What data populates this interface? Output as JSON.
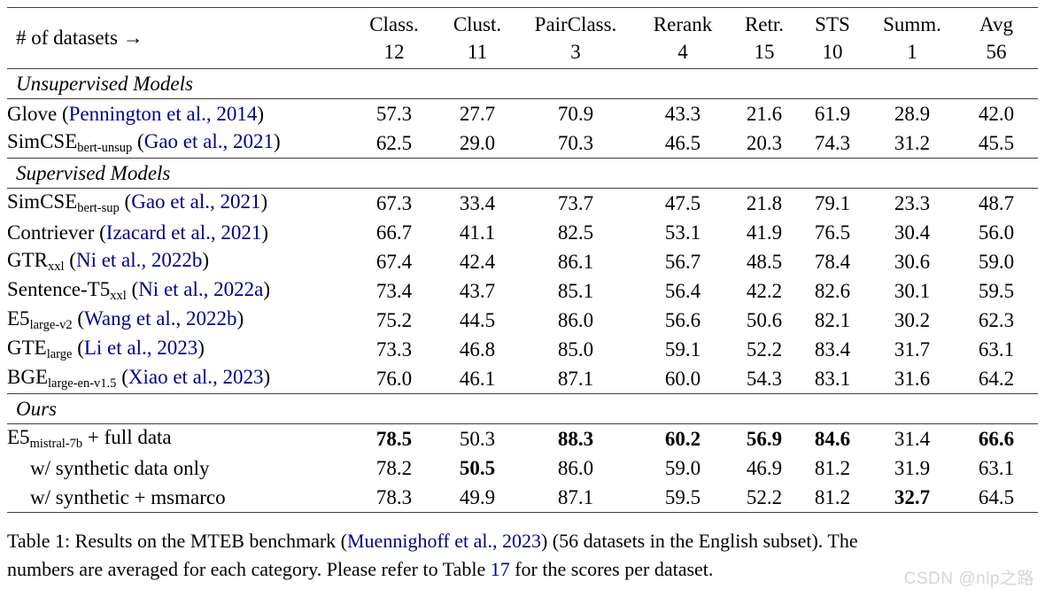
{
  "table": {
    "header": {
      "label": "# of datasets →",
      "columns": [
        {
          "label": "Class.",
          "count": "12"
        },
        {
          "label": "Clust.",
          "count": "11"
        },
        {
          "label": "PairClass.",
          "count": "3"
        },
        {
          "label": "Rerank",
          "count": "4"
        },
        {
          "label": "Retr.",
          "count": "15"
        },
        {
          "label": "STS",
          "count": "10"
        },
        {
          "label": "Summ.",
          "count": "1"
        },
        {
          "label": "Avg",
          "count": "56"
        }
      ]
    },
    "glue": {
      "open_paren": "(",
      "close_paren": ")",
      "space": " "
    },
    "sections": [
      {
        "title": "Unsupervised Models",
        "rows": [
          {
            "base": "Glove",
            "sub": "",
            "after": "",
            "citation": "Pennington et al., 2014",
            "indent": false,
            "values": [
              "57.3",
              "27.7",
              "70.9",
              "43.3",
              "21.6",
              "61.9",
              "28.9",
              "42.0"
            ],
            "bold": []
          },
          {
            "base": "SimCSE",
            "sub": "bert-unsup",
            "after": "",
            "citation": "Gao et al., 2021",
            "indent": false,
            "values": [
              "62.5",
              "29.0",
              "70.3",
              "46.5",
              "20.3",
              "74.3",
              "31.2",
              "45.5"
            ],
            "bold": []
          }
        ]
      },
      {
        "title": "Supervised Models",
        "rows": [
          {
            "base": "SimCSE",
            "sub": "bert-sup",
            "after": "",
            "citation": "Gao et al., 2021",
            "indent": false,
            "values": [
              "67.3",
              "33.4",
              "73.7",
              "47.5",
              "21.8",
              "79.1",
              "23.3",
              "48.7"
            ],
            "bold": []
          },
          {
            "base": "Contriever",
            "sub": "",
            "after": "",
            "citation": "Izacard et al., 2021",
            "indent": false,
            "values": [
              "66.7",
              "41.1",
              "82.5",
              "53.1",
              "41.9",
              "76.5",
              "30.4",
              "56.0"
            ],
            "bold": []
          },
          {
            "base": "GTR",
            "sub": "xxl",
            "after": "",
            "citation": "Ni et al., 2022b",
            "indent": false,
            "values": [
              "67.4",
              "42.4",
              "86.1",
              "56.7",
              "48.5",
              "78.4",
              "30.6",
              "59.0"
            ],
            "bold": []
          },
          {
            "base": "Sentence-T5",
            "sub": "xxl",
            "after": "",
            "citation": "Ni et al., 2022a",
            "indent": false,
            "values": [
              "73.4",
              "43.7",
              "85.1",
              "56.4",
              "42.2",
              "82.6",
              "30.1",
              "59.5"
            ],
            "bold": []
          },
          {
            "base": "E5",
            "sub": "large-v2",
            "after": "",
            "citation": "Wang et al., 2022b",
            "indent": false,
            "values": [
              "75.2",
              "44.5",
              "86.0",
              "56.6",
              "50.6",
              "82.1",
              "30.2",
              "62.3"
            ],
            "bold": []
          },
          {
            "base": "GTE",
            "sub": "large",
            "after": "",
            "citation": "Li et al., 2023",
            "indent": false,
            "values": [
              "73.3",
              "46.8",
              "85.0",
              "59.1",
              "52.2",
              "83.4",
              "31.7",
              "63.1"
            ],
            "bold": []
          },
          {
            "base": "BGE",
            "sub": "large-en-v1.5",
            "after": "",
            "citation": "Xiao et al., 2023",
            "indent": false,
            "values": [
              "76.0",
              "46.1",
              "87.1",
              "60.0",
              "54.3",
              "83.1",
              "31.6",
              "64.2"
            ],
            "bold": []
          }
        ]
      },
      {
        "title": "Ours",
        "rows": [
          {
            "base": "E5",
            "sub": "mistral-7b",
            "after": " + full data",
            "citation": "",
            "indent": false,
            "values": [
              "78.5",
              "50.3",
              "88.3",
              "60.2",
              "56.9",
              "84.6",
              "31.4",
              "66.6"
            ],
            "bold": [
              0,
              2,
              3,
              4,
              5,
              7
            ]
          },
          {
            "base": "w/ synthetic data only",
            "sub": "",
            "after": "",
            "citation": "",
            "indent": true,
            "values": [
              "78.2",
              "50.5",
              "86.0",
              "59.0",
              "46.9",
              "81.2",
              "31.9",
              "63.1"
            ],
            "bold": [
              1
            ]
          },
          {
            "base": "w/ synthetic + msmarco",
            "sub": "",
            "after": "",
            "citation": "",
            "indent": true,
            "values": [
              "78.3",
              "49.9",
              "87.1",
              "59.5",
              "52.2",
              "81.2",
              "32.7",
              "64.5"
            ],
            "bold": [
              6
            ]
          }
        ]
      }
    ]
  },
  "caption": {
    "line1": [
      {
        "text": "Table 1:  Results on the MTEB benchmark (",
        "link": false
      },
      {
        "text": "Muennighoff et al., 2023",
        "link": true
      },
      {
        "text": ") (56 datasets in the English subset).  The",
        "link": false
      }
    ],
    "line2": [
      {
        "text": "numbers are averaged for each category. Please refer to Table  ",
        "link": false
      },
      {
        "text": "17",
        "link": true
      },
      {
        "text": " for the scores per dataset.",
        "link": false
      }
    ]
  },
  "watermark": "CSDN @nlp之路",
  "colors": {
    "link_blue": "#00008B",
    "rule": "#3d3d3d",
    "watermark": "#d8d4d3",
    "background": "#ffffff",
    "text": "#000000"
  }
}
